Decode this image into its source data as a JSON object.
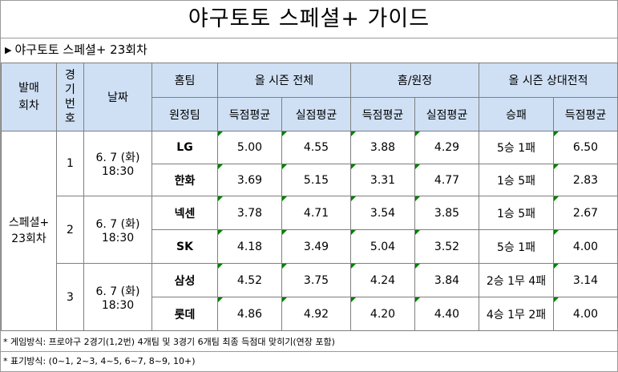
{
  "title": "야구토토 스페셜+ 가이드",
  "subtitle": "야구토토 스페셜+ 23회차",
  "headers": {
    "round": "발매 회차",
    "game_no": "경기번호",
    "date": "날짜",
    "home_team": "홈팀",
    "away_team": "원정팀",
    "season_all": "올 시즌 전체",
    "home_away": "홈/원정",
    "season_h2h": "올 시즌 상대전적",
    "score_avg": "득점평균",
    "allowed_avg": "실점평균",
    "win_loss": "승패"
  },
  "round_label": "스페셜+ 23회차",
  "games": [
    {
      "no": "1",
      "date": "6. 7 (화)",
      "time": "18:30",
      "teams": [
        {
          "name": "LG",
          "season_score": "5.00",
          "season_allowed": "4.55",
          "ha_score": "3.88",
          "ha_allowed": "4.29",
          "h2h_record": "5승 1패",
          "h2h_score": "6.50"
        },
        {
          "name": "한화",
          "season_score": "3.69",
          "season_allowed": "5.15",
          "ha_score": "3.31",
          "ha_allowed": "4.77",
          "h2h_record": "1승 5패",
          "h2h_score": "2.83"
        }
      ]
    },
    {
      "no": "2",
      "date": "6. 7 (화)",
      "time": "18:30",
      "teams": [
        {
          "name": "넥센",
          "season_score": "3.78",
          "season_allowed": "4.71",
          "ha_score": "3.54",
          "ha_allowed": "3.85",
          "h2h_record": "1승 5패",
          "h2h_score": "2.67"
        },
        {
          "name": "SK",
          "season_score": "4.18",
          "season_allowed": "3.49",
          "ha_score": "5.04",
          "ha_allowed": "3.52",
          "h2h_record": "5승 1패",
          "h2h_score": "4.00"
        }
      ]
    },
    {
      "no": "3",
      "date": "6. 7 (화)",
      "time": "18:30",
      "teams": [
        {
          "name": "삼성",
          "season_score": "4.52",
          "season_allowed": "3.75",
          "ha_score": "4.24",
          "ha_allowed": "3.84",
          "h2h_record": "2승 1무 4패",
          "h2h_score": "3.14"
        },
        {
          "name": "롯데",
          "season_score": "4.86",
          "season_allowed": "4.92",
          "ha_score": "4.20",
          "ha_allowed": "4.40",
          "h2h_record": "4승 1무 2패",
          "h2h_score": "4.00"
        }
      ]
    }
  ],
  "footnotes": {
    "game_method": "* 게임방식: 프로야구 2경기(1,2번) 4개팀 및 3경기 6개팀 최종 득점대 맞히기(연장 포함)",
    "notation": "* 표기방식: (0~1, 2~3, 4~5, 6~7, 8~9, 10+)"
  }
}
